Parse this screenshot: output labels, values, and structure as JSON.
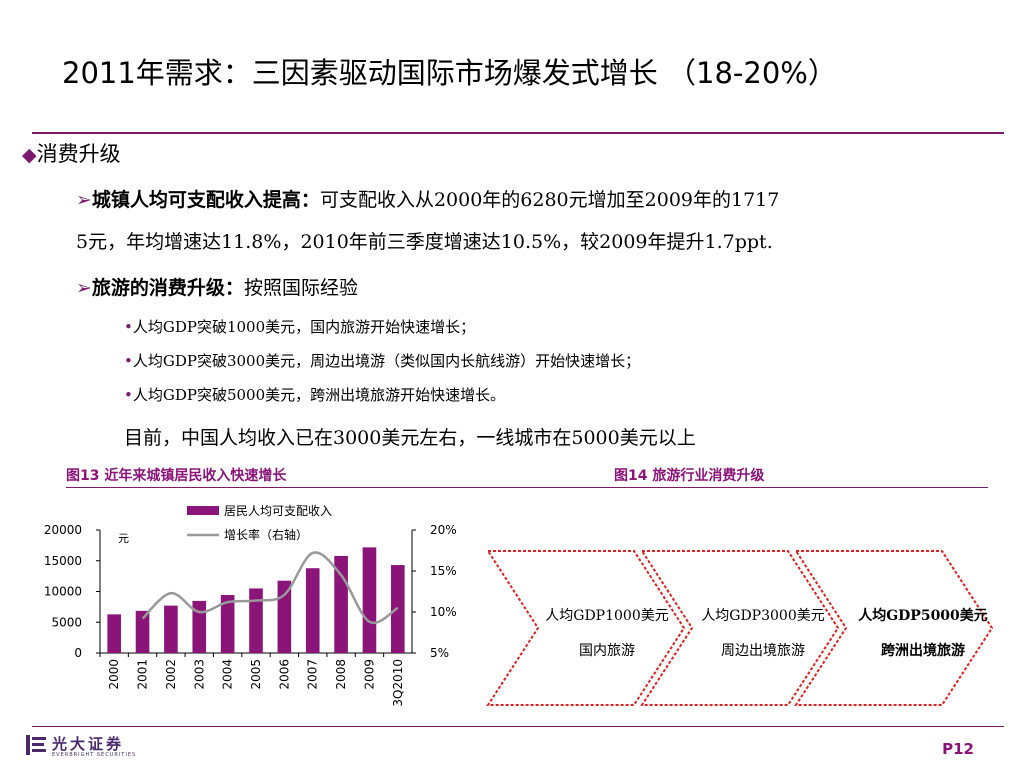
{
  "title": "2011年需求：三因素驱动国际市场爆发式增长 （18-20%）",
  "section": {
    "marker": "◆",
    "label": "消费升级"
  },
  "points": [
    {
      "marker": "Ø",
      "bold": "城镇人均可支配收入提高：",
      "text1": "可支配收入从2000年的6280元增加至2009年的1717",
      "text2": "5元，年均增速达11.8%，2010年前三季度增速达10.5%，较2009年提升1.7ppt."
    },
    {
      "marker": "Ø",
      "bold": "旅游的消费升级：",
      "text1": "按照国际经验"
    }
  ],
  "bullets": [
    "人均GDP突破1000美元，国内旅游开始快速增长；",
    "人均GDP突破3000美元，周边出境游（类似国内长航线游）开始快速增长；",
    "人均GDP突破5000美元，跨洲出境旅游开始快速增长。"
  ],
  "note": "目前，中国人均收入已在3000美元左右，一线城市在5000美元以上",
  "fig13_caption": "图13  近年来城镇居民收入快速增长",
  "fig14_caption": "图14  旅游行业消费升级",
  "chart_data": {
    "type": "bar",
    "categories": [
      "2000",
      "2001",
      "2002",
      "2003",
      "2004",
      "2005",
      "2006",
      "2007",
      "2008",
      "2009",
      "3Q2010"
    ],
    "series": [
      {
        "name": "居民人均可支配收入",
        "type": "bar",
        "axis": "left",
        "values": [
          6280,
          6860,
          7703,
          8472,
          9422,
          10493,
          11759,
          13786,
          15781,
          17175,
          14300
        ],
        "color": "#8a1478"
      },
      {
        "name": "增长率（右轴）",
        "type": "line",
        "axis": "right",
        "values": [
          null,
          9.2,
          12.3,
          10.0,
          11.2,
          11.4,
          12.1,
          17.2,
          14.5,
          8.8,
          10.5
        ],
        "color": "#999999"
      }
    ],
    "y_left": {
      "ticks": [
        "0",
        "5000",
        "10000",
        "15000",
        "20000"
      ],
      "range": [
        0,
        20000
      ],
      "unit": "元"
    },
    "y_right": {
      "ticks": [
        "5%",
        "10%",
        "15%",
        "20%"
      ],
      "range": [
        5,
        20
      ]
    },
    "legend_position": "top"
  },
  "flow": [
    {
      "line1": "人均GDP1000美元",
      "line2": "国内旅游",
      "bold": false
    },
    {
      "line1": "人均GDP3000美元",
      "line2": "周边出境旅游",
      "bold": false
    },
    {
      "line1": "人均GDP5000美元",
      "line2": "跨洲出境旅游",
      "bold": true
    }
  ],
  "logo": {
    "name": "光大证券",
    "sub": "EVERBRIGHT SECURITIES"
  },
  "page_number": "P12"
}
